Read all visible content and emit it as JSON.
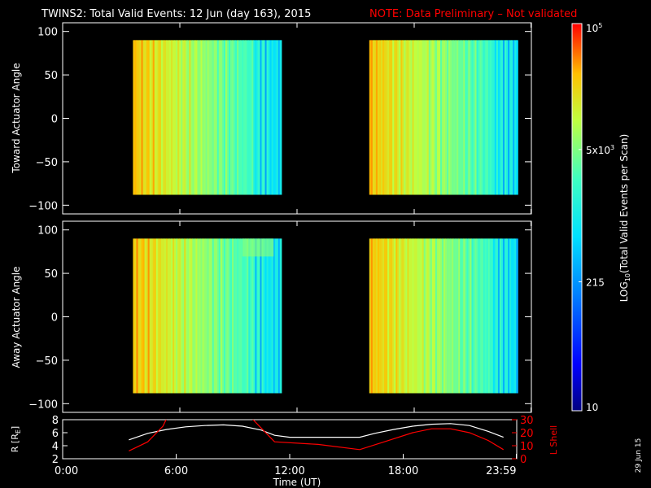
{
  "title": "TWINS2: Total Valid Events: 12 Jun (day 163), 2015",
  "note": "NOTE: Data Preliminary – Not validated",
  "side_date": "29 Jun 15",
  "colors": {
    "background": "#000000",
    "axes": "#ffffff",
    "note": "#ff0000",
    "r_line": "#ffffff",
    "l_line": "#ff0000"
  },
  "chart_data": [
    {
      "type": "heatmap",
      "ylabel": "Toward Actuator Angle",
      "ylim": [
        -110,
        110
      ],
      "yticks": [
        100,
        50,
        0,
        -50,
        -100
      ],
      "ytick_labels": [
        "100",
        "50",
        "0",
        "−50",
        "−100"
      ],
      "data_ranges": [
        {
          "start": 3.6,
          "end": 11.2
        },
        {
          "start": 15.7,
          "end": 23.3
        }
      ],
      "angle_range": [
        -88,
        90
      ]
    },
    {
      "type": "heatmap",
      "ylabel": "Away Actuator Angle",
      "ylim": [
        -110,
        110
      ],
      "yticks": [
        100,
        50,
        0,
        -50,
        -100
      ],
      "ytick_labels": [
        "100",
        "50",
        "0",
        "−50",
        "−100"
      ],
      "data_ranges": [
        {
          "start": 3.6,
          "end": 11.2
        },
        {
          "start": 15.7,
          "end": 23.3
        }
      ],
      "angle_range": [
        -88,
        90
      ]
    },
    {
      "type": "line",
      "xlabel": "Time (UT)",
      "xlim": [
        0,
        24
      ],
      "xticks": [
        0,
        6,
        12,
        18,
        23.98
      ],
      "xtick_labels": [
        "0:00",
        "6:00",
        "12:00",
        "18:00",
        "23:59"
      ],
      "left_axis": {
        "label": "R [R",
        "label_sub": "E",
        "label_end": "]",
        "ylim": [
          2,
          8
        ],
        "ticks": [
          2,
          4,
          6,
          8
        ],
        "tick_labels": [
          "2",
          "4",
          "6",
          "8"
        ]
      },
      "right_axis": {
        "label": "L Shell",
        "ylim": [
          0,
          30
        ],
        "ticks": [
          0,
          10,
          20,
          30
        ],
        "tick_labels": [
          "0",
          "10",
          "20",
          "30"
        ]
      },
      "series": [
        {
          "axis": "left",
          "x": [
            3.5,
            4.5,
            5.5,
            6.5,
            7.5,
            8.5,
            9.5,
            10.5,
            11.2,
            12,
            13,
            14,
            15,
            15.7,
            16.5,
            17.5,
            18.5,
            19.5,
            20.5,
            21.5,
            22.5,
            23.3
          ],
          "y": [
            4.9,
            5.9,
            6.5,
            6.9,
            7.1,
            7.2,
            7.0,
            6.4,
            5.6,
            5.3,
            5.3,
            5.3,
            5.3,
            5.3,
            5.9,
            6.5,
            7.0,
            7.3,
            7.4,
            7.1,
            6.2,
            5.3
          ]
        },
        {
          "axis": "right",
          "x": [
            3.5,
            4.5,
            5.3,
            5.5
          ],
          "y": [
            6,
            13,
            25,
            31
          ]
        },
        {
          "axis": "right",
          "x": [
            10.0,
            10.6,
            11.2,
            13.5,
            15.7,
            17.0,
            18.5,
            19.5,
            20.5,
            21.5,
            22.5,
            23.3
          ],
          "y": [
            31,
            22,
            13,
            11,
            7,
            13,
            20,
            23,
            23,
            20,
            14,
            7
          ]
        }
      ]
    }
  ],
  "colorbar": {
    "label_prefix": "LOG",
    "label_sub": "10",
    "label_rest": "(Total Valid Events per Scan)",
    "ticks": [
      {
        "base": "10",
        "exp": "5",
        "log": 5
      },
      {
        "base": "5x10",
        "exp": "3",
        "log": 3.699
      },
      {
        "base": "215",
        "exp": "",
        "log": 2.332
      },
      {
        "base": "10",
        "exp": "",
        "log": 1
      }
    ],
    "range": [
      1,
      5
    ]
  }
}
